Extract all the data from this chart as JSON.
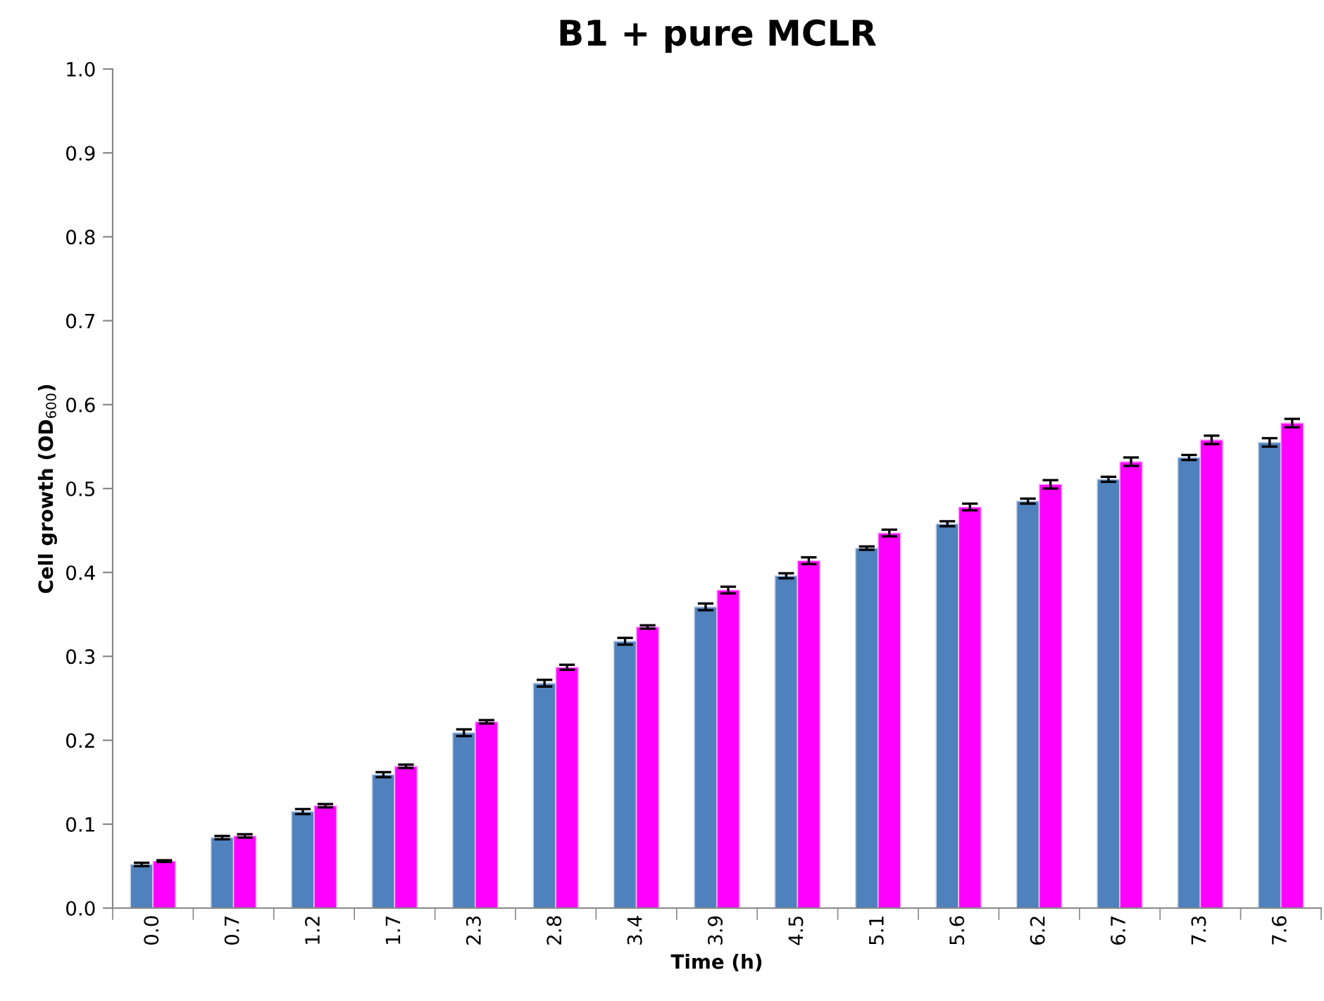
{
  "chart_data": {
    "type": "bar",
    "title": "B1 + pure MCLR",
    "xlabel": "Time (h)",
    "ylabel": "Cell growth (OD$_{600}$)",
    "categories": [
      "0.0",
      "0.7",
      "1.2",
      "1.7",
      "2.3",
      "2.8",
      "3.4",
      "3.9",
      "4.5",
      "5.1",
      "5.6",
      "6.2",
      "6.7",
      "7.3",
      "7.6"
    ],
    "series": [
      {
        "color": "#4f81bd",
        "values": [
          0.052,
          0.084,
          0.115,
          0.159,
          0.209,
          0.268,
          0.318,
          0.359,
          0.396,
          0.429,
          0.458,
          0.485,
          0.511,
          0.537,
          0.555
        ],
        "errors": [
          0.002,
          0.002,
          0.003,
          0.003,
          0.004,
          0.004,
          0.004,
          0.004,
          0.003,
          0.002,
          0.003,
          0.003,
          0.003,
          0.003,
          0.005
        ]
      },
      {
        "color": "#ff00ff",
        "values": [
          0.056,
          0.086,
          0.122,
          0.169,
          0.222,
          0.287,
          0.335,
          0.379,
          0.414,
          0.447,
          0.478,
          0.505,
          0.532,
          0.558,
          0.578
        ],
        "errors": [
          0.001,
          0.002,
          0.002,
          0.002,
          0.002,
          0.003,
          0.002,
          0.004,
          0.004,
          0.004,
          0.004,
          0.005,
          0.005,
          0.005,
          0.005
        ]
      }
    ],
    "ylim": [
      0,
      1.0
    ],
    "yticks": [
      {
        "value": 0,
        "label": "0.0"
      },
      {
        "value": 0.1,
        "label": "0.1"
      },
      {
        "value": 0.2,
        "label": "0.2"
      },
      {
        "value": 0.3,
        "label": "0.3"
      },
      {
        "value": 0.4,
        "label": "0.4"
      },
      {
        "value": 0.5,
        "label": "0.5"
      },
      {
        "value": 0.6,
        "label": "0.6"
      },
      {
        "value": 0.7,
        "label": "0.7"
      },
      {
        "value": 0.8,
        "label": "0.8"
      },
      {
        "value": 0.9,
        "label": "0.9"
      },
      {
        "value": 1.0,
        "label": "1.0"
      }
    ],
    "grid": false
  }
}
